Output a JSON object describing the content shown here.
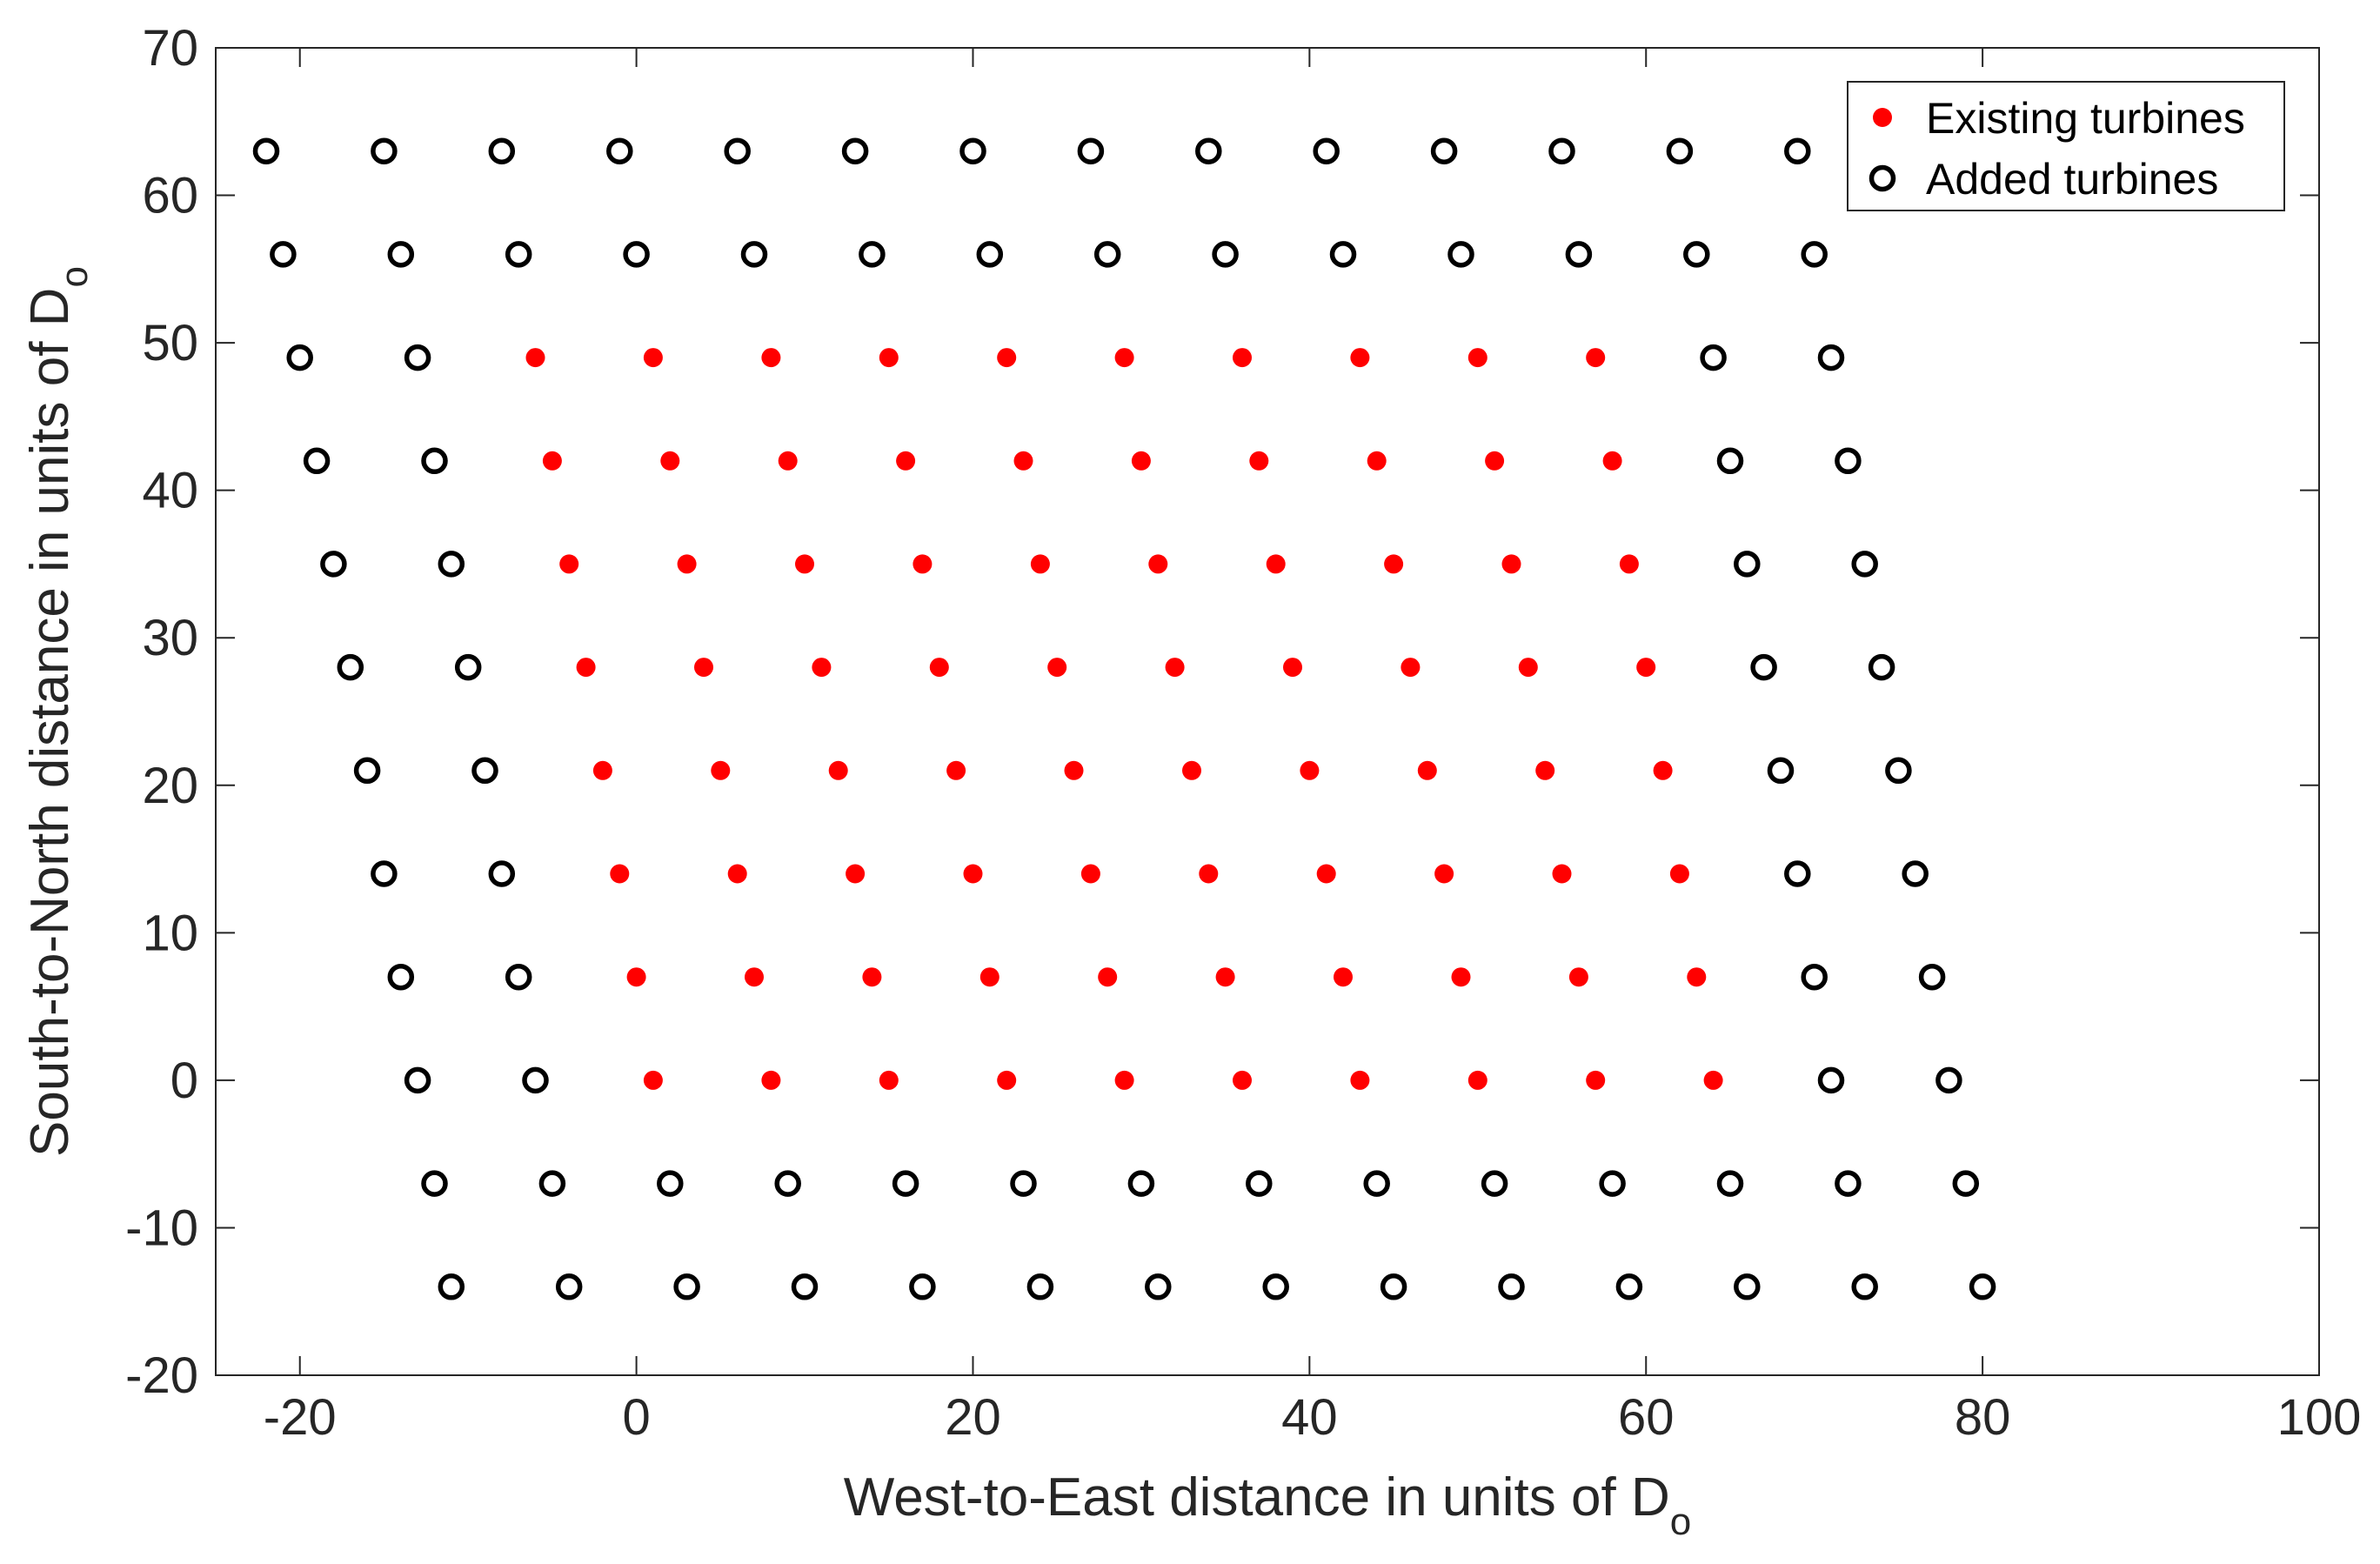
{
  "chart_data": {
    "type": "scatter",
    "title": "",
    "xlabel": "West-to-East distance in units of D",
    "xlabel_sub": "o",
    "ylabel": "South-to-North distance in units of D",
    "ylabel_sub": "o",
    "xlim": [
      -25,
      100
    ],
    "ylim": [
      -20,
      70
    ],
    "xticks": [
      -20,
      0,
      20,
      40,
      60,
      80,
      100
    ],
    "yticks": [
      -20,
      -10,
      0,
      10,
      20,
      30,
      40,
      50,
      60,
      70
    ],
    "xtick_labels": [
      "-20",
      "0",
      "20",
      "40",
      "60",
      "80",
      "100"
    ],
    "ytick_labels": [
      "-20",
      "-10",
      "0",
      "10",
      "20",
      "30",
      "40",
      "50",
      "60",
      "70"
    ],
    "grid": false,
    "legend_position": "top-right",
    "colors": {
      "existing": "#ff0000",
      "added": "#000000",
      "axes": "#262626"
    },
    "series": [
      {
        "name": "Existing turbines",
        "marker": "filled-dot",
        "color": "#ff0000"
      },
      {
        "name": "Added turbines",
        "marker": "open-circle",
        "color": "#000000"
      }
    ],
    "lattice": {
      "x_spacing": 7,
      "row_y_step": 7,
      "row_x_shift": 1,
      "rows": [
        {
          "y": 63,
          "x_start": -22,
          "added": [
            0,
            13
          ],
          "existing": null
        },
        {
          "y": 56,
          "x_start": -21,
          "added": [
            0,
            13
          ],
          "existing": null
        },
        {
          "y": 49,
          "x_start": -20,
          "added": [
            0,
            1,
            12,
            13
          ],
          "existing": [
            2,
            11
          ]
        },
        {
          "y": 42,
          "x_start": -19,
          "added": [
            0,
            1,
            12,
            13
          ],
          "existing": [
            2,
            11
          ]
        },
        {
          "y": 35,
          "x_start": -18,
          "added": [
            0,
            1,
            12,
            13
          ],
          "existing": [
            2,
            11
          ]
        },
        {
          "y": 28,
          "x_start": -17,
          "added": [
            0,
            1,
            12,
            13
          ],
          "existing": [
            2,
            11
          ]
        },
        {
          "y": 21,
          "x_start": -16,
          "added": [
            0,
            1,
            12,
            13
          ],
          "existing": [
            2,
            11
          ]
        },
        {
          "y": 14,
          "x_start": -15,
          "added": [
            0,
            1,
            12,
            13
          ],
          "existing": [
            2,
            11
          ]
        },
        {
          "y": 7,
          "x_start": -14,
          "added": [
            0,
            1,
            12,
            13
          ],
          "existing": [
            2,
            11
          ]
        },
        {
          "y": 0,
          "x_start": -13,
          "added": [
            0,
            1,
            12,
            13
          ],
          "existing": [
            2,
            11
          ]
        },
        {
          "y": -7,
          "x_start": -12,
          "added": [
            0,
            13
          ],
          "existing": null
        },
        {
          "y": -14,
          "x_start": -11,
          "added": [
            0,
            13
          ],
          "existing": null
        }
      ]
    }
  }
}
